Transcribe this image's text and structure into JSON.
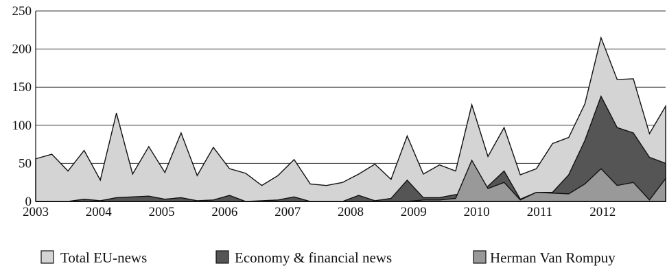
{
  "chart_data": {
    "type": "area",
    "title": "",
    "xlabel": "",
    "ylabel": "",
    "ylim": [
      0,
      250
    ],
    "yticks": [
      0,
      50,
      100,
      150,
      200,
      250
    ],
    "x_tick_labels": [
      "2003",
      "2004",
      "2005",
      "2006",
      "2007",
      "2008",
      "2009",
      "2010",
      "2011",
      "2012"
    ],
    "grid": "horizontal",
    "legend_position": "bottom",
    "colors": {
      "total": "#d4d4d4",
      "economy": "#555555",
      "rompuy": "#999999",
      "outline": "#111111"
    },
    "x": [
      "2003-Q1",
      "2003-Q2",
      "2003-Q3",
      "2003-Q4",
      "2004-Q1",
      "2004-Q2",
      "2004-Q3",
      "2004-Q4",
      "2005-Q1",
      "2005-Q2",
      "2005-Q3",
      "2005-Q4",
      "2006-Q1",
      "2006-Q2",
      "2006-Q3",
      "2006-Q4",
      "2007-Q1",
      "2007-Q2",
      "2007-Q3",
      "2007-Q4",
      "2008-Q1",
      "2008-Q2",
      "2008-Q3",
      "2008-Q4",
      "2009-Q1",
      "2009-Q2",
      "2009-Q3",
      "2009-Q4",
      "2010-Q1",
      "2010-Q2",
      "2010-Q3",
      "2010-Q4",
      "2011-Q1",
      "2011-Q2",
      "2011-Q3",
      "2011-Q4",
      "2012-Q1",
      "2012-Q2",
      "2012-Q3",
      "2012-Q4"
    ],
    "series": [
      {
        "name": "Total EU-news",
        "key": "total",
        "values": [
          56,
          62,
          40,
          67,
          28,
          116,
          36,
          72,
          38,
          90,
          34,
          71,
          43,
          37,
          21,
          34,
          55,
          23,
          21,
          25,
          36,
          49,
          29,
          86,
          36,
          48,
          40,
          127,
          59,
          97,
          35,
          43,
          76,
          84,
          128,
          215,
          160,
          161,
          89,
          125
        ]
      },
      {
        "name": "Economy & financial news",
        "key": "economy",
        "values": [
          0,
          0,
          0,
          3,
          1,
          5,
          6,
          7,
          3,
          5,
          1,
          2,
          8,
          0,
          1,
          2,
          6,
          0,
          0,
          0,
          8,
          1,
          4,
          28,
          5,
          5,
          9,
          10,
          20,
          40,
          3,
          12,
          12,
          35,
          80,
          138,
          97,
          90,
          58,
          50
        ]
      },
      {
        "name": "Herman Van Rompuy",
        "key": "rompuy",
        "values": [
          0,
          0,
          0,
          0,
          0,
          0,
          0,
          0,
          0,
          0,
          0,
          0,
          0,
          0,
          0,
          0,
          0,
          0,
          0,
          0,
          0,
          0,
          0,
          0,
          2,
          2,
          4,
          54,
          17,
          25,
          2,
          12,
          11,
          10,
          23,
          43,
          21,
          25,
          2,
          30
        ]
      }
    ]
  }
}
